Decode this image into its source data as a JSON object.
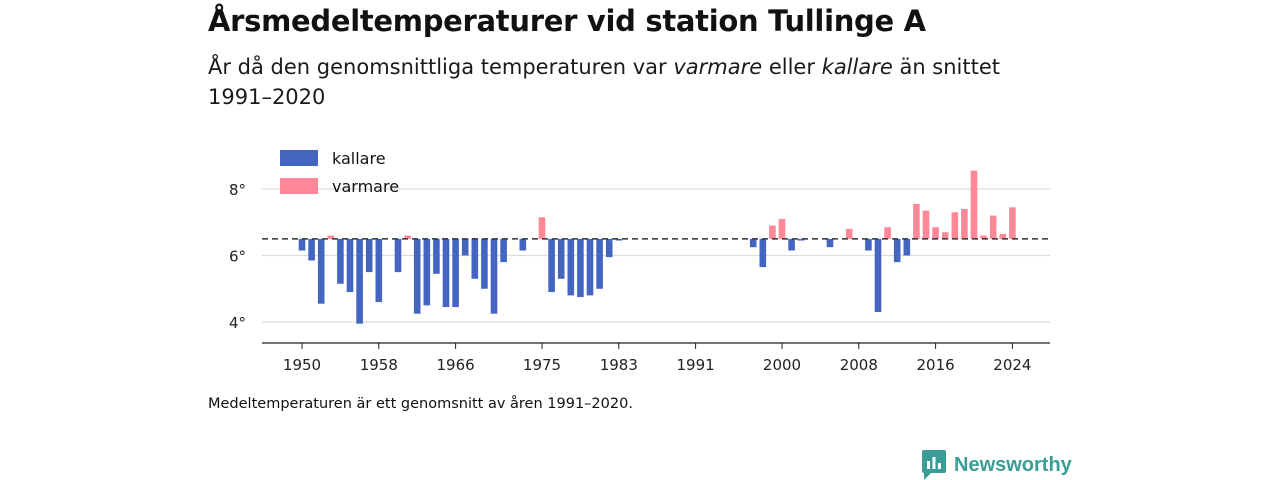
{
  "header": {
    "title": "Årsmedeltemperaturer vid station Tullinge A",
    "subtitle_part1": "År då den genomsnittliga temperaturen var ",
    "subtitle_warm": "varmare",
    "subtitle_part2": " eller ",
    "subtitle_cold": "kallare",
    "subtitle_part3": " än snittet 1991–2020"
  },
  "note": "Medeltemperaturen är ett genomsnitt av åren 1991–2020.",
  "brand": {
    "name": "Newsworthy",
    "icon": "newsworthy-logo-icon"
  },
  "colors": {
    "cold": "#4466c0",
    "warm": "#ff8898",
    "baseline": "#333333",
    "grid": "#dddddd",
    "brand": "#3a9d96"
  },
  "chart_data": {
    "type": "bar",
    "title": "Årsmedeltemperaturer vid station Tullinge A",
    "baseline": 6.5,
    "ylim": [
      3.4,
      9.0
    ],
    "yticks": [
      4,
      6,
      8
    ],
    "ytick_suffix": "°",
    "xlim": [
      1945,
      2028
    ],
    "xticks": [
      1950,
      1958,
      1966,
      1975,
      1983,
      1991,
      2000,
      2008,
      2016,
      2024
    ],
    "grid": true,
    "legend": {
      "position": "top-left",
      "entries": [
        {
          "label": "kallare",
          "key": "cold"
        },
        {
          "label": "varmare",
          "key": "warm"
        }
      ]
    },
    "years": [
      1950,
      1951,
      1952,
      1953,
      1954,
      1955,
      1956,
      1957,
      1958,
      1960,
      1961,
      1962,
      1963,
      1964,
      1965,
      1966,
      1967,
      1968,
      1969,
      1970,
      1971,
      1973,
      1975,
      1976,
      1977,
      1978,
      1979,
      1980,
      1981,
      1982,
      1983,
      1997,
      1998,
      1999,
      2000,
      2001,
      2002,
      2005,
      2007,
      2009,
      2010,
      2011,
      2012,
      2013,
      2014,
      2015,
      2016,
      2017,
      2018,
      2019,
      2020,
      2021,
      2022,
      2023,
      2024
    ],
    "values": [
      6.15,
      5.85,
      4.55,
      6.6,
      5.15,
      4.9,
      3.95,
      5.5,
      4.6,
      5.5,
      6.6,
      4.25,
      4.5,
      5.45,
      4.45,
      4.45,
      6.0,
      5.3,
      5.0,
      4.25,
      5.8,
      6.15,
      7.15,
      4.9,
      5.3,
      4.8,
      4.75,
      4.8,
      5.0,
      5.95,
      6.45,
      6.25,
      5.65,
      6.9,
      7.1,
      6.15,
      6.45,
      6.25,
      6.8,
      6.15,
      4.3,
      6.85,
      5.8,
      6.0,
      7.55,
      7.35,
      6.85,
      6.7,
      7.3,
      7.4,
      8.55,
      6.6,
      7.2,
      6.65,
      7.45
    ]
  }
}
